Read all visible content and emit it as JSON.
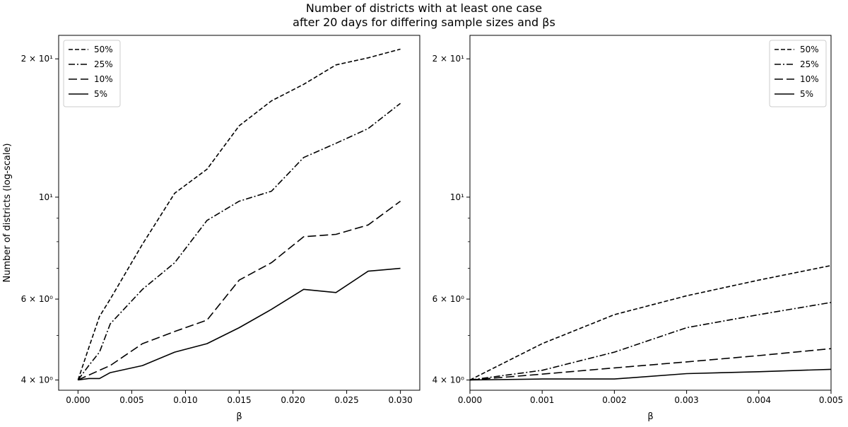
{
  "figure": {
    "title_line1": "Number of districts with at least one case",
    "title_line2": "after 20 days for differing sample sizes and βs"
  },
  "chart_data": [
    {
      "type": "line",
      "xlabel": "β",
      "ylabel": "Number of districts (log-scale)",
      "xlim": [
        -0.0018,
        0.0318
      ],
      "ylim": [
        3.8,
        22.5
      ],
      "yscale": "log",
      "grid": false,
      "legend": "top-left",
      "xticks": [
        0,
        0.005,
        0.01,
        0.015,
        0.02,
        0.025,
        0.03
      ],
      "xtick_labels": [
        "0.000",
        "0.005",
        "0.010",
        "0.015",
        "0.020",
        "0.025",
        "0.030"
      ],
      "yticks_major": [
        4,
        6,
        10,
        20
      ],
      "ytick_labels": [
        "4 × 10⁰",
        "6 × 10⁰",
        "10¹",
        "2 × 10¹"
      ],
      "yticks_minor": [
        5,
        7,
        8,
        9
      ],
      "x": [
        0,
        0.001,
        0.002,
        0.003,
        0.006,
        0.009,
        0.012,
        0.015,
        0.018,
        0.021,
        0.024,
        0.027,
        0.03
      ],
      "series": [
        {
          "name": "50%",
          "dash": "6,3",
          "values": [
            4.0,
            4.7,
            5.5,
            6.0,
            7.9,
            10.2,
            11.5,
            14.3,
            16.2,
            17.6,
            19.4,
            20.1,
            21.0
          ]
        },
        {
          "name": "25%",
          "dash": "9,3,2,3",
          "values": [
            4.0,
            4.3,
            4.6,
            5.3,
            6.3,
            7.2,
            8.9,
            9.8,
            10.3,
            12.2,
            13.1,
            14.1,
            16.0
          ]
        },
        {
          "name": "10%",
          "dash": "12,5",
          "values": [
            4.0,
            4.1,
            4.2,
            4.3,
            4.8,
            5.1,
            5.4,
            6.6,
            7.2,
            8.2,
            8.3,
            8.7,
            9.8
          ]
        },
        {
          "name": "5%",
          "dash": "",
          "values": [
            4.0,
            4.03,
            4.03,
            4.15,
            4.3,
            4.6,
            4.8,
            5.2,
            5.7,
            6.3,
            6.2,
            6.9,
            7.0
          ]
        }
      ]
    },
    {
      "type": "line",
      "xlabel": "β",
      "ylabel": "",
      "xlim": [
        0,
        0.005
      ],
      "ylim": [
        3.8,
        22.5
      ],
      "yscale": "log",
      "grid": false,
      "legend": "top-right",
      "xticks": [
        0,
        0.001,
        0.002,
        0.003,
        0.004,
        0.005
      ],
      "xtick_labels": [
        "0.000",
        "0.001",
        "0.002",
        "0.003",
        "0.004",
        "0.005"
      ],
      "yticks_major": [
        4,
        6,
        10,
        20
      ],
      "ytick_labels": [
        "4 × 10⁰",
        "6 × 10⁰",
        "10¹",
        "2 × 10¹"
      ],
      "yticks_minor": [
        5,
        7,
        8,
        9
      ],
      "x": [
        0,
        0.001,
        0.002,
        0.003,
        0.004,
        0.005
      ],
      "series": [
        {
          "name": "50%",
          "dash": "6,3",
          "values": [
            4.0,
            4.8,
            5.55,
            6.1,
            6.6,
            7.1
          ]
        },
        {
          "name": "25%",
          "dash": "9,3,2,3",
          "values": [
            4.0,
            4.2,
            4.6,
            5.2,
            5.55,
            5.9
          ]
        },
        {
          "name": "10%",
          "dash": "12,5",
          "values": [
            4.0,
            4.12,
            4.25,
            4.38,
            4.52,
            4.68
          ]
        },
        {
          "name": "5%",
          "dash": "",
          "values": [
            4.0,
            4.02,
            4.02,
            4.13,
            4.17,
            4.22
          ]
        }
      ]
    }
  ]
}
